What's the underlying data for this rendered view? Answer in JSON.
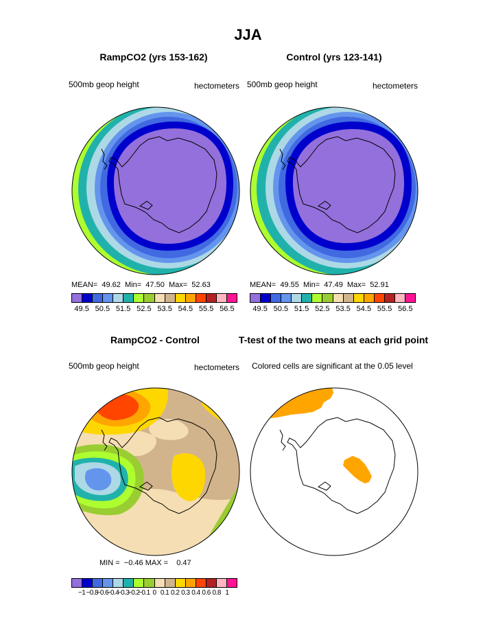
{
  "figure": {
    "title": "JJA"
  },
  "panels": [
    {
      "title": "RampCO2 (yrs 153-162)",
      "left_label": "500mb geop height",
      "right_label": "hectometers",
      "stats": {
        "mean_label": "MEAN=",
        "mean": "49.62",
        "min_label": "Min=",
        "min": "47.50",
        "max_label": "Max=",
        "max": "52.63"
      }
    },
    {
      "title": "Control (yrs 123-141)",
      "left_label": "500mb geop height",
      "right_label": "hectometers",
      "stats": {
        "mean_label": "MEAN=",
        "mean": "49.55",
        "min_label": "Min=",
        "min": "47.49",
        "max_label": "Max=",
        "max": "52.91"
      }
    },
    {
      "title": "RampCO2 - Control",
      "left_label": "500mb geop height",
      "right_label": "hectometers",
      "stats": {
        "min_label": "MIN =",
        "min": "−0.46",
        "max_label": "MAX =",
        "max": "0.47"
      }
    },
    {
      "title": "T-test of the two means at each grid point",
      "left_label": "Colored cells are significant at the 0.05 level"
    }
  ],
  "colorbar_abs": {
    "colors": [
      "#9370db",
      "#0000cd",
      "#4169e1",
      "#6495ed",
      "#add8e6",
      "#20b2aa",
      "#adff2f",
      "#9acd32",
      "#f5deb3",
      "#d2b48c",
      "#ffd700",
      "#ffa500",
      "#ff4500",
      "#b22222",
      "#ffb6c1",
      "#ff1493"
    ],
    "labels": [
      "49.5",
      "50.5",
      "51.5",
      "52.5",
      "53.5",
      "54.5",
      "55.5",
      "56.5"
    ]
  },
  "colorbar_diff": {
    "colors": [
      "#9370db",
      "#0000cd",
      "#4169e1",
      "#6495ed",
      "#add8e6",
      "#20b2aa",
      "#adff2f",
      "#9acd32",
      "#f5deb3",
      "#d2b48c",
      "#ffd700",
      "#ffa500",
      "#ff4500",
      "#b22222",
      "#ffb6c1",
      "#ff1493"
    ],
    "labels": [
      "−1",
      "−0.8",
      "−0.6",
      "−0.4",
      "−0.3",
      "−0.2",
      "−0.1",
      "0",
      "0.1",
      "0.2",
      "0.3",
      "0.4",
      "0.6",
      "0.8",
      "1"
    ]
  },
  "map_colors": {
    "ocean_outer": "#adff2f",
    "ring_yellowgreen": "#9acd32",
    "ring_green": "#adff2f",
    "ring_teal": "#20b2aa",
    "ring_lightblue": "#add8e6",
    "ring_cornflower": "#6495ed",
    "ring_royal": "#4169e1",
    "ring_blue": "#0000cd",
    "core": "#9370db",
    "significant": "#ffa500",
    "coast": "#000000"
  }
}
